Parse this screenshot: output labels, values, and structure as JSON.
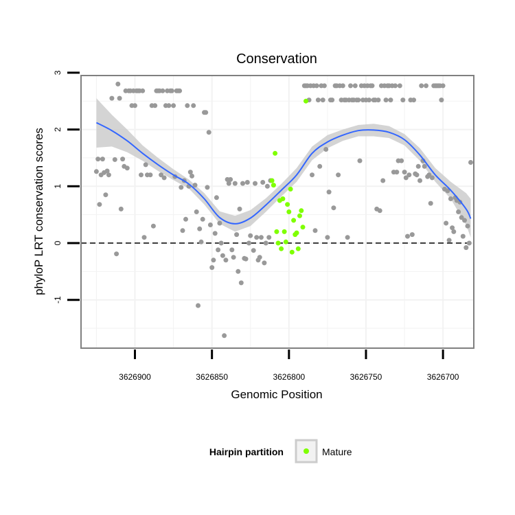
{
  "chart_data": {
    "type": "scatter",
    "title": "Conservation",
    "xlabel": "Genomic Position",
    "ylabel": "phyloP LRT conservation scores",
    "x_reversed": true,
    "xlim": [
      3626935,
      3626680
    ],
    "ylim": [
      -1.85,
      2.95
    ],
    "x_ticks": [
      3626900,
      3626850,
      3626800,
      3626750,
      3626700
    ],
    "x_tick_labels": [
      "3626900",
      "3626850",
      "3626800",
      "3626750",
      "3626700"
    ],
    "y_ticks": [
      -1,
      0,
      1,
      2,
      3
    ],
    "y_tick_labels": [
      "-1",
      "0",
      "1",
      "2",
      "3"
    ],
    "grid": true,
    "reference_line": {
      "y": 0,
      "style": "dashed",
      "color": "#000000"
    },
    "colors": {
      "points": "#999999",
      "mature": "#7FFF00",
      "smooth_line": "#3366FF",
      "ribbon": "#CCCCCC",
      "panel_border": "#7F7F7F",
      "grid": "#F2F2F2"
    },
    "legend": {
      "title": "Hairpin partition",
      "placement": "bottom",
      "entries": [
        {
          "label": "Mature",
          "color": "#7FFF00"
        }
      ]
    },
    "series": [
      {
        "points": [
          [
            3626925,
            1.26
          ],
          [
            3626924,
            1.48
          ],
          [
            3626923,
            0.68
          ],
          [
            3626922,
            1.2
          ],
          [
            3626921,
            1.48
          ],
          [
            3626920,
            1.24
          ],
          [
            3626919,
            0.85
          ],
          [
            3626918,
            1.27
          ],
          [
            3626917,
            1.2
          ],
          [
            3626915,
            2.55
          ],
          [
            3626913,
            1.47
          ],
          [
            3626912,
            -0.19
          ],
          [
            3626911,
            2.8
          ],
          [
            3626910,
            2.55
          ],
          [
            3626909,
            0.6
          ],
          [
            3626908,
            1.48
          ],
          [
            3626907,
            1.35
          ],
          [
            3626906,
            2.68
          ],
          [
            3626905,
            1.32
          ],
          [
            3626904,
            2.68
          ],
          [
            3626903,
            2.68
          ],
          [
            3626902,
            2.42
          ],
          [
            3626901,
            2.68
          ],
          [
            3626900,
            2.42
          ],
          [
            3626899,
            2.68
          ],
          [
            3626898,
            2.68
          ],
          [
            3626897,
            2.68
          ],
          [
            3626896,
            1.2
          ],
          [
            3626895,
            2.68
          ],
          [
            3626894,
            0.1
          ],
          [
            3626893,
            1.38
          ],
          [
            3626892,
            1.2
          ],
          [
            3626890,
            1.2
          ],
          [
            3626889,
            2.42
          ],
          [
            3626888,
            0.3
          ],
          [
            3626887,
            2.42
          ],
          [
            3626886,
            2.68
          ],
          [
            3626885,
            2.68
          ],
          [
            3626884,
            2.68
          ],
          [
            3626883,
            1.2
          ],
          [
            3626882,
            2.68
          ],
          [
            3626881,
            1.15
          ],
          [
            3626880,
            2.42
          ],
          [
            3626879,
            2.68
          ],
          [
            3626878,
            2.42
          ],
          [
            3626877,
            2.68
          ],
          [
            3626876,
            2.68
          ],
          [
            3626875,
            2.42
          ],
          [
            3626874,
            1.17
          ],
          [
            3626873,
            2.68
          ],
          [
            3626872,
            2.68
          ],
          [
            3626871,
            2.68
          ],
          [
            3626870,
            0.98
          ],
          [
            3626869,
            0.22
          ],
          [
            3626868,
            1.1
          ],
          [
            3626867,
            0.42
          ],
          [
            3626866,
            2.42
          ],
          [
            3626865,
            1.0
          ],
          [
            3626864,
            1.25
          ],
          [
            3626863,
            1.18
          ],
          [
            3626862,
            2.42
          ],
          [
            3626861,
            1.02
          ],
          [
            3626860,
            0.55
          ],
          [
            3626859,
            -1.1
          ],
          [
            3626858,
            0.25
          ],
          [
            3626857,
            0.02
          ],
          [
            3626856,
            0.42
          ],
          [
            3626855,
            2.3
          ],
          [
            3626854,
            2.3
          ],
          [
            3626853,
            0.98
          ],
          [
            3626852,
            1.95
          ],
          [
            3626851,
            0.32
          ],
          [
            3626850,
            -0.43
          ],
          [
            3626849,
            -0.3
          ],
          [
            3626848,
            0.17
          ],
          [
            3626847,
            0.8
          ],
          [
            3626846,
            -0.12
          ],
          [
            3626845,
            0.35
          ],
          [
            3626844,
            0.0
          ],
          [
            3626843,
            -0.22
          ],
          [
            3626842,
            -1.63
          ],
          [
            3626841,
            -0.3
          ],
          [
            3626840,
            1.12
          ],
          [
            3626839,
            1.05
          ],
          [
            3626838,
            1.12
          ],
          [
            3626837,
            -0.12
          ],
          [
            3626836,
            -0.25
          ],
          [
            3626835,
            1.05
          ],
          [
            3626834,
            0.15
          ],
          [
            3626833,
            -0.5
          ],
          [
            3626832,
            0.6
          ],
          [
            3626831,
            -0.7
          ],
          [
            3626830,
            1.05
          ],
          [
            3626829,
            -0.27
          ],
          [
            3626828,
            -0.28
          ],
          [
            3626827,
            1.07
          ],
          [
            3626826,
            0.0
          ],
          [
            3626825,
            0.13
          ],
          [
            3626823,
            -0.13
          ],
          [
            3626822,
            1.05
          ],
          [
            3626821,
            0.1
          ],
          [
            3626820,
            -0.3
          ],
          [
            3626819,
            -0.25
          ],
          [
            3626818,
            0.1
          ],
          [
            3626817,
            1.07
          ],
          [
            3626816,
            -0.35
          ],
          [
            3626815,
            0.0
          ],
          [
            3626814,
            1.0
          ],
          [
            3626813,
            0.1
          ],
          [
            3626812,
            1.1
          ],
          [
            3626790,
            2.77
          ],
          [
            3626789,
            2.77
          ],
          [
            3626788,
            2.77
          ],
          [
            3626787,
            2.52
          ],
          [
            3626786,
            2.77
          ],
          [
            3626785,
            1.2
          ],
          [
            3626784,
            2.77
          ],
          [
            3626783,
            0.22
          ],
          [
            3626782,
            2.77
          ],
          [
            3626781,
            2.52
          ],
          [
            3626780,
            1.35
          ],
          [
            3626779,
            2.77
          ],
          [
            3626778,
            2.52
          ],
          [
            3626777,
            2.77
          ],
          [
            3626776,
            1.65
          ],
          [
            3626775,
            0.1
          ],
          [
            3626774,
            0.9
          ],
          [
            3626773,
            2.52
          ],
          [
            3626772,
            2.52
          ],
          [
            3626771,
            0.62
          ],
          [
            3626770,
            2.77
          ],
          [
            3626769,
            2.77
          ],
          [
            3626768,
            1.2
          ],
          [
            3626767,
            2.77
          ],
          [
            3626766,
            2.52
          ],
          [
            3626765,
            2.77
          ],
          [
            3626764,
            2.52
          ],
          [
            3626763,
            2.52
          ],
          [
            3626762,
            0.1
          ],
          [
            3626761,
            2.52
          ],
          [
            3626760,
            2.77
          ],
          [
            3626759,
            2.52
          ],
          [
            3626758,
            2.52
          ],
          [
            3626757,
            2.77
          ],
          [
            3626756,
            2.52
          ],
          [
            3626755,
            2.52
          ],
          [
            3626754,
            1.45
          ],
          [
            3626753,
            2.77
          ],
          [
            3626752,
            2.52
          ],
          [
            3626751,
            2.77
          ],
          [
            3626750,
            2.52
          ],
          [
            3626749,
            2.77
          ],
          [
            3626748,
            2.52
          ],
          [
            3626747,
            2.77
          ],
          [
            3626746,
            2.77
          ],
          [
            3626745,
            2.52
          ],
          [
            3626744,
            2.52
          ],
          [
            3626743,
            0.6
          ],
          [
            3626742,
            2.52
          ],
          [
            3626741,
            0.57
          ],
          [
            3626740,
            2.77
          ],
          [
            3626739,
            1.1
          ],
          [
            3626738,
            2.77
          ],
          [
            3626737,
            2.52
          ],
          [
            3626736,
            2.77
          ],
          [
            3626735,
            2.77
          ],
          [
            3626734,
            2.52
          ],
          [
            3626733,
            2.77
          ],
          [
            3626732,
            1.25
          ],
          [
            3626731,
            2.77
          ],
          [
            3626730,
            1.25
          ],
          [
            3626729,
            1.45
          ],
          [
            3626728,
            2.77
          ],
          [
            3626727,
            1.45
          ],
          [
            3626726,
            2.52
          ],
          [
            3626725,
            1.25
          ],
          [
            3626724,
            1.15
          ],
          [
            3626723,
            0.12
          ],
          [
            3626722,
            1.2
          ],
          [
            3626721,
            2.52
          ],
          [
            3626720,
            0.15
          ],
          [
            3626719,
            2.52
          ],
          [
            3626718,
            1.22
          ],
          [
            3626717,
            1.2
          ],
          [
            3626716,
            1.35
          ],
          [
            3626715,
            1.1
          ],
          [
            3626714,
            2.77
          ],
          [
            3626713,
            1.45
          ],
          [
            3626712,
            1.35
          ],
          [
            3626711,
            2.77
          ],
          [
            3626710,
            1.17
          ],
          [
            3626709,
            1.2
          ],
          [
            3626708,
            0.7
          ],
          [
            3626707,
            1.15
          ],
          [
            3626706,
            2.77
          ],
          [
            3626705,
            2.77
          ],
          [
            3626704,
            2.77
          ],
          [
            3626703,
            2.77
          ],
          [
            3626702,
            2.77
          ],
          [
            3626701,
            2.52
          ],
          [
            3626700,
            2.77
          ],
          [
            3626699,
            0.95
          ],
          [
            3626698,
            0.35
          ],
          [
            3626697,
            0.92
          ],
          [
            3626696,
            0.05
          ],
          [
            3626695,
            0.78
          ],
          [
            3626694,
            0.27
          ],
          [
            3626693,
            0.2
          ],
          [
            3626692,
            0.8
          ],
          [
            3626691,
            0.75
          ],
          [
            3626690,
            0.55
          ],
          [
            3626689,
            0.72
          ],
          [
            3626688,
            0.45
          ],
          [
            3626687,
            0.12
          ],
          [
            3626686,
            0.4
          ],
          [
            3626685,
            -0.08
          ],
          [
            3626684,
            0.3
          ],
          [
            3626683,
            0.0
          ],
          [
            3626682,
            1.42
          ]
        ]
      },
      {
        "name": "Mature",
        "points": [
          [
            3626811,
            1.1
          ],
          [
            3626810,
            1.02
          ],
          [
            3626809,
            1.58
          ],
          [
            3626808,
            0.2
          ],
          [
            3626807,
            0.0
          ],
          [
            3626806,
            0.75
          ],
          [
            3626805,
            -0.1
          ],
          [
            3626804,
            0.78
          ],
          [
            3626803,
            0.2
          ],
          [
            3626802,
            0.02
          ],
          [
            3626801,
            0.68
          ],
          [
            3626800,
            0.55
          ],
          [
            3626799,
            0.95
          ],
          [
            3626798,
            -0.16
          ],
          [
            3626797,
            0.4
          ],
          [
            3626796,
            0.15
          ],
          [
            3626795,
            0.18
          ],
          [
            3626794,
            -0.1
          ],
          [
            3626793,
            0.48
          ],
          [
            3626792,
            0.57
          ],
          [
            3626791,
            0.28
          ],
          [
            3626789,
            2.5
          ]
        ]
      }
    ],
    "smooth_fit": {
      "x": [
        3626925,
        3626915,
        3626905,
        3626895,
        3626885,
        3626875,
        3626865,
        3626855,
        3626845,
        3626835,
        3626825,
        3626815,
        3626805,
        3626795,
        3626785,
        3626775,
        3626765,
        3626755,
        3626745,
        3626735,
        3626725,
        3626715,
        3626705,
        3626695,
        3626685,
        3626682
      ],
      "y": [
        2.12,
        1.98,
        1.8,
        1.58,
        1.38,
        1.2,
        1.04,
        0.78,
        0.45,
        0.34,
        0.44,
        0.67,
        0.93,
        1.2,
        1.58,
        1.78,
        1.9,
        1.98,
        1.99,
        1.95,
        1.82,
        1.55,
        1.2,
        0.93,
        0.6,
        0.43
      ],
      "lower": [
        1.68,
        1.7,
        1.6,
        1.45,
        1.27,
        1.11,
        0.96,
        0.68,
        0.34,
        0.2,
        0.3,
        0.55,
        0.82,
        1.08,
        1.46,
        1.67,
        1.8,
        1.88,
        1.88,
        1.85,
        1.72,
        1.45,
        1.08,
        0.78,
        0.32,
        0.1
      ],
      "upper": [
        2.55,
        2.26,
        2.0,
        1.72,
        1.5,
        1.3,
        1.12,
        0.88,
        0.56,
        0.48,
        0.58,
        0.79,
        1.04,
        1.32,
        1.7,
        1.9,
        2.0,
        2.08,
        2.1,
        2.06,
        1.92,
        1.67,
        1.32,
        1.08,
        0.88,
        0.78
      ]
    }
  }
}
